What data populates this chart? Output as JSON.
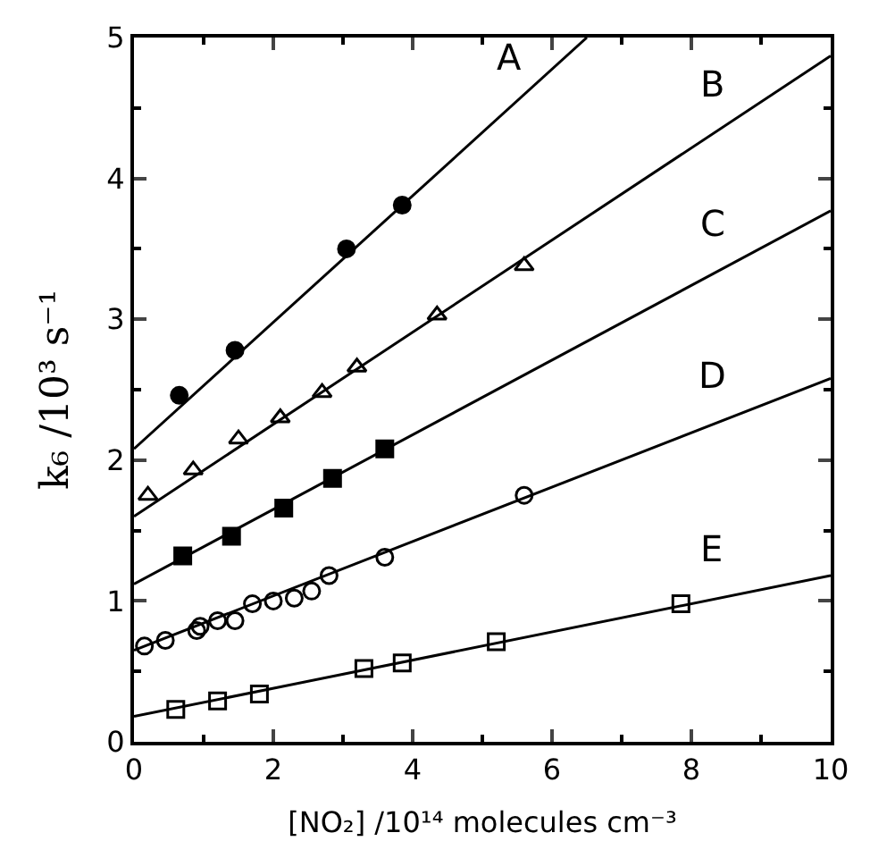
{
  "chart_data": {
    "type": "scatter",
    "xlabel": "[NO₂] /10¹⁴ molecules cm⁻³",
    "ylabel": "k₆ /10³ s⁻¹",
    "xlim": [
      0,
      10
    ],
    "xticks": [
      0,
      2,
      4,
      6,
      8,
      10
    ],
    "ylim": [
      0,
      5
    ],
    "yticks": [
      0,
      1,
      2,
      3,
      4,
      5
    ],
    "series": [
      {
        "marker": "circle",
        "color": "#000000",
        "x": [
          0.65,
          1.45,
          3.05,
          3.85
        ],
        "values": [
          2.46,
          2.78,
          3.5,
          3.81
        ]
      },
      {
        "marker": "triangle-up-open",
        "color": "#000000",
        "x": [
          0.2,
          0.85,
          1.5,
          2.1,
          2.7,
          3.2,
          4.35,
          5.6
        ],
        "values": [
          1.75,
          1.93,
          2.15,
          2.3,
          2.48,
          2.66,
          3.03,
          3.38
        ]
      },
      {
        "marker": "square",
        "color": "#000000",
        "x": [
          0.7,
          1.4,
          2.15,
          2.85,
          3.6
        ],
        "values": [
          1.32,
          1.46,
          1.66,
          1.87,
          2.08
        ]
      },
      {
        "marker": "circle-open",
        "color": "#000000",
        "x": [
          0.15,
          0.45,
          0.9,
          0.95,
          1.2,
          1.45,
          1.7,
          2.0,
          2.3,
          2.55,
          2.8,
          3.6,
          5.6
        ],
        "values": [
          0.68,
          0.72,
          0.79,
          0.82,
          0.86,
          0.86,
          0.98,
          1.0,
          1.02,
          1.07,
          1.18,
          1.31,
          1.75
        ]
      },
      {
        "marker": "square-open",
        "color": "#000000",
        "x": [
          0.6,
          1.2,
          1.8,
          3.3,
          3.85,
          5.2,
          7.85
        ],
        "values": [
          0.23,
          0.29,
          0.34,
          0.52,
          0.56,
          0.71,
          0.98
        ]
      },
      {
        "type": "line",
        "name": "A",
        "color": "#000000",
        "x": [
          0,
          6.5
        ],
        "values": [
          2.08,
          5.0
        ]
      },
      {
        "type": "line",
        "name": "B",
        "color": "#000000",
        "x": [
          0,
          10
        ],
        "values": [
          1.6,
          4.87
        ]
      },
      {
        "type": "line",
        "name": "C",
        "color": "#000000",
        "x": [
          0,
          10
        ],
        "values": [
          1.12,
          3.77
        ]
      },
      {
        "type": "line",
        "name": "D",
        "color": "#000000",
        "x": [
          0,
          10
        ],
        "values": [
          0.65,
          2.58
        ]
      },
      {
        "type": "line",
        "name": "E",
        "color": "#000000",
        "x": [
          0,
          10
        ],
        "values": [
          0.18,
          1.18
        ]
      }
    ]
  }
}
